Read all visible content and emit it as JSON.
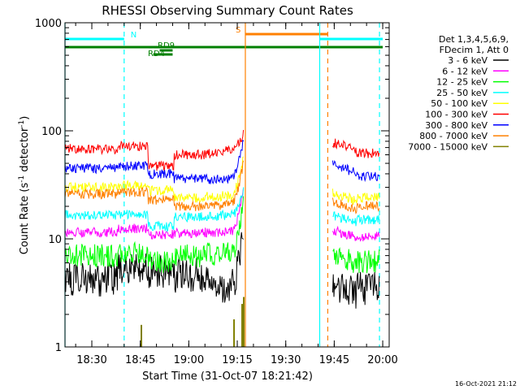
{
  "chart_data": {
    "type": "line",
    "title": "RHESSI Observing Summary Count Rates",
    "xlabel": "Start Time (31-Oct-07 18:21:42)",
    "ylabel_main": "Count Rate (s",
    "ylabel_sup1": "-1",
    "ylabel_mid": " detector",
    "ylabel_sup2": "-1",
    "ylabel_end": ")",
    "y_scale": "log",
    "ylim": [
      1,
      1000
    ],
    "xlim": [
      "18:21:42",
      "20:02:00"
    ],
    "x_ticks": [
      "18:30",
      "18:45",
      "19:00",
      "19:15",
      "19:30",
      "19:45",
      "20:00"
    ],
    "y_ticks": [
      1,
      10,
      100,
      1000
    ],
    "y_tick_labels": [
      "1",
      "10",
      "100",
      "1000"
    ],
    "legend_header": [
      "Det 1,3,4,5,6,9,",
      "FDecim 1, Att 0"
    ],
    "legend_position": "right",
    "footer_date": "16-Oct-2021 21:12",
    "series": [
      {
        "name": "3 - 6 keV",
        "color": "#000000",
        "values": [
          4.2,
          5.3,
          5.0,
          4.6,
          4.0,
          3.7,
          0,
          3.6,
          3.5
        ]
      },
      {
        "name": "6 - 12 keV",
        "color": "#ff00ff",
        "values": [
          11.5,
          12.5,
          11.0,
          11.3,
          11.5,
          11.6,
          0,
          12.0,
          10.5
        ]
      },
      {
        "name": "12 - 25 keV",
        "color": "#00ff00",
        "values": [
          7.0,
          7.5,
          6.0,
          7.0,
          7.2,
          7.3,
          0,
          7.0,
          6.2
        ]
      },
      {
        "name": "25 - 50 keV",
        "color": "#00ffff",
        "values": [
          16.5,
          17.0,
          13.0,
          16.0,
          16.3,
          16.5,
          0,
          16.5,
          15.0
        ]
      },
      {
        "name": "50 - 100 keV",
        "color": "#ffff00",
        "values": [
          30.0,
          31.0,
          28.0,
          24.0,
          24.5,
          25.0,
          0,
          26.5,
          24.0
        ]
      },
      {
        "name": "100 - 300 keV",
        "color": "#ff0000",
        "values": [
          68.0,
          72.0,
          47.0,
          60.0,
          62.0,
          65.0,
          0,
          78.0,
          62.0
        ]
      },
      {
        "name": "300 - 800 keV",
        "color": "#0000ff",
        "values": [
          45.0,
          47.0,
          40.0,
          36.0,
          35.5,
          36.0,
          0,
          48.0,
          38.0
        ]
      },
      {
        "name": "800 - 7000 keV",
        "color": "#ff8000",
        "values": [
          26.0,
          27.0,
          23.0,
          20.0,
          20.5,
          21.0,
          0,
          22.0,
          20.0
        ]
      },
      {
        "name": "7000 - 15000 keV",
        "color": "#808000",
        "values": [
          1.0,
          1.0,
          1.0,
          1.0,
          1.0,
          1.0,
          0,
          1.0,
          1.0
        ]
      }
    ],
    "series_times": [
      "18:25",
      "18:40",
      "18:52",
      "19:00",
      "19:07",
      "19:12",
      "19:30",
      "19:47",
      "19:58"
    ],
    "spike_times": [
      "18:45:20",
      "19:14",
      "19:16:30",
      "19:17"
    ],
    "spike_peaks": [
      1.6,
      1.8,
      2.5,
      2.9
    ],
    "rise_end_values": [
      12.0,
      32.0,
      24.0,
      28.0,
      60.0,
      100.0,
      90.0,
      55.0
    ],
    "flags": [
      {
        "label": "N",
        "color": "#00ffff",
        "row": "top",
        "start": "18:21:42",
        "end": "18:40:00"
      },
      {
        "label": "",
        "color": "#00ffff",
        "row": "top",
        "start": "19:40:30",
        "end": "20:00:00"
      },
      {
        "label": "S",
        "color": "#ff8000",
        "row": "top-s",
        "start": "19:17:30",
        "end": "19:43:00"
      },
      {
        "label": "",
        "color": "#008000",
        "row": "middle",
        "start": "18:21:42",
        "end": "20:00:00"
      },
      {
        "label": "RD9",
        "color": "#008000",
        "row": "rd9",
        "start": "18:51:00",
        "end": "18:55:00"
      },
      {
        "label": "RD4",
        "color": "#008000",
        "row": "lower",
        "start": "18:49:00",
        "end": "18:55:00"
      }
    ],
    "vlines": [
      {
        "time": "18:21:42",
        "color": "#00ffff",
        "style": "solid"
      },
      {
        "time": "18:40:00",
        "color": "#00ffff",
        "style": "dash"
      },
      {
        "time": "19:17:30",
        "color": "#ff8000",
        "style": "solid"
      },
      {
        "time": "19:40:30",
        "color": "#00ffff",
        "style": "solid"
      },
      {
        "time": "19:43:00",
        "color": "#ff8000",
        "style": "dash"
      },
      {
        "time": "19:59:00",
        "color": "#00ffff",
        "style": "dash"
      }
    ]
  }
}
